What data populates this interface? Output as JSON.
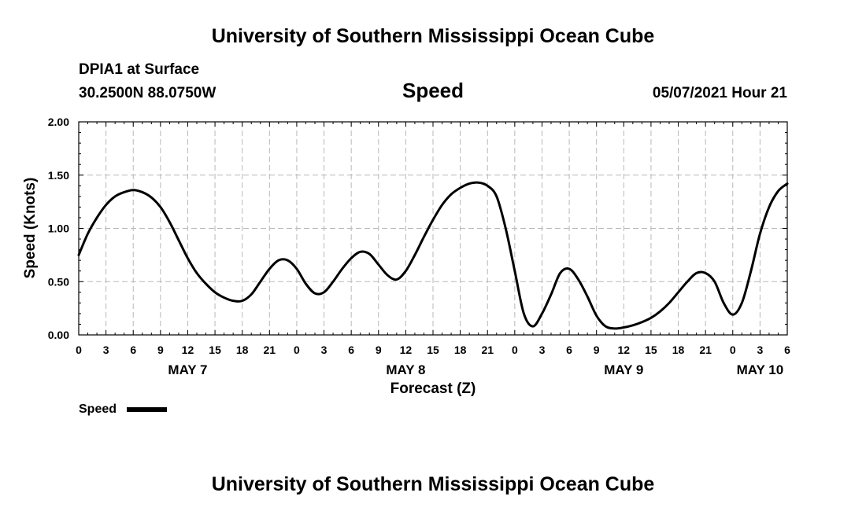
{
  "header": {
    "title_top": "University of Southern Mississippi Ocean Cube",
    "title_bottom": "University of Southern Mississippi Ocean Cube",
    "station": "DPIA1 at Surface",
    "coordinates": "30.2500N  88.0750W",
    "variable": "Speed",
    "datetime": "05/07/2021 Hour 21"
  },
  "legend": {
    "label": "Speed"
  },
  "chart_data": {
    "type": "line",
    "title": "Speed",
    "xlabel": "Forecast (Z)",
    "ylabel": "Speed (Knots)",
    "x_unit": "hours since May 7 00Z",
    "xlim": [
      0,
      78
    ],
    "ylim": [
      0,
      2
    ],
    "grid": true,
    "legend_position": "bottom-left",
    "y_ticks": [
      {
        "value": 0,
        "label": "0.00"
      },
      {
        "value": 0.5,
        "label": "0.50"
      },
      {
        "value": 1.0,
        "label": "1.00"
      },
      {
        "value": 1.5,
        "label": "1.50"
      },
      {
        "value": 2.0,
        "label": "2.00"
      }
    ],
    "x_ticks": [
      {
        "value": 0,
        "label": "0"
      },
      {
        "value": 3,
        "label": "3"
      },
      {
        "value": 6,
        "label": "6"
      },
      {
        "value": 9,
        "label": "9"
      },
      {
        "value": 12,
        "label": "12"
      },
      {
        "value": 15,
        "label": "15"
      },
      {
        "value": 18,
        "label": "18"
      },
      {
        "value": 21,
        "label": "21"
      },
      {
        "value": 24,
        "label": "0"
      },
      {
        "value": 27,
        "label": "3"
      },
      {
        "value": 30,
        "label": "6"
      },
      {
        "value": 33,
        "label": "9"
      },
      {
        "value": 36,
        "label": "12"
      },
      {
        "value": 39,
        "label": "15"
      },
      {
        "value": 42,
        "label": "18"
      },
      {
        "value": 45,
        "label": "21"
      },
      {
        "value": 48,
        "label": "0"
      },
      {
        "value": 51,
        "label": "3"
      },
      {
        "value": 54,
        "label": "6"
      },
      {
        "value": 57,
        "label": "9"
      },
      {
        "value": 60,
        "label": "12"
      },
      {
        "value": 63,
        "label": "15"
      },
      {
        "value": 66,
        "label": "18"
      },
      {
        "value": 69,
        "label": "21"
      },
      {
        "value": 72,
        "label": "0"
      },
      {
        "value": 75,
        "label": "3"
      },
      {
        "value": 78,
        "label": "6"
      }
    ],
    "day_labels": [
      {
        "value": 12,
        "label": "MAY 7"
      },
      {
        "value": 36,
        "label": "MAY 8"
      },
      {
        "value": 60,
        "label": "MAY 9"
      },
      {
        "value": 75,
        "label": "MAY 10"
      }
    ],
    "series": [
      {
        "name": "Speed",
        "x": [
          0,
          1,
          2,
          3,
          4,
          5,
          6,
          7,
          8,
          9,
          10,
          11,
          12,
          13,
          14,
          15,
          16,
          17,
          18,
          19,
          20,
          21,
          22,
          23,
          24,
          25,
          26,
          27,
          28,
          29,
          30,
          31,
          32,
          33,
          34,
          35,
          36,
          37,
          38,
          39,
          40,
          41,
          42,
          43,
          44,
          45,
          46,
          47,
          48,
          49,
          50,
          51,
          52,
          53,
          54,
          55,
          56,
          57,
          58,
          59,
          60,
          61,
          62,
          63,
          64,
          65,
          66,
          67,
          68,
          69,
          70,
          71,
          72,
          73,
          74,
          75,
          76,
          77,
          78
        ],
        "values": [
          0.75,
          0.95,
          1.1,
          1.22,
          1.3,
          1.34,
          1.36,
          1.34,
          1.29,
          1.2,
          1.06,
          0.89,
          0.72,
          0.58,
          0.48,
          0.4,
          0.35,
          0.32,
          0.32,
          0.38,
          0.5,
          0.62,
          0.7,
          0.7,
          0.62,
          0.48,
          0.39,
          0.4,
          0.5,
          0.62,
          0.72,
          0.78,
          0.76,
          0.66,
          0.56,
          0.52,
          0.6,
          0.75,
          0.92,
          1.08,
          1.22,
          1.32,
          1.38,
          1.42,
          1.43,
          1.4,
          1.3,
          1.0,
          0.6,
          0.2,
          0.08,
          0.2,
          0.38,
          0.58,
          0.62,
          0.52,
          0.36,
          0.18,
          0.08,
          0.06,
          0.07,
          0.09,
          0.12,
          0.16,
          0.22,
          0.3,
          0.4,
          0.5,
          0.58,
          0.58,
          0.5,
          0.3,
          0.19,
          0.3,
          0.6,
          0.95,
          1.2,
          1.35,
          1.42
        ]
      }
    ]
  }
}
